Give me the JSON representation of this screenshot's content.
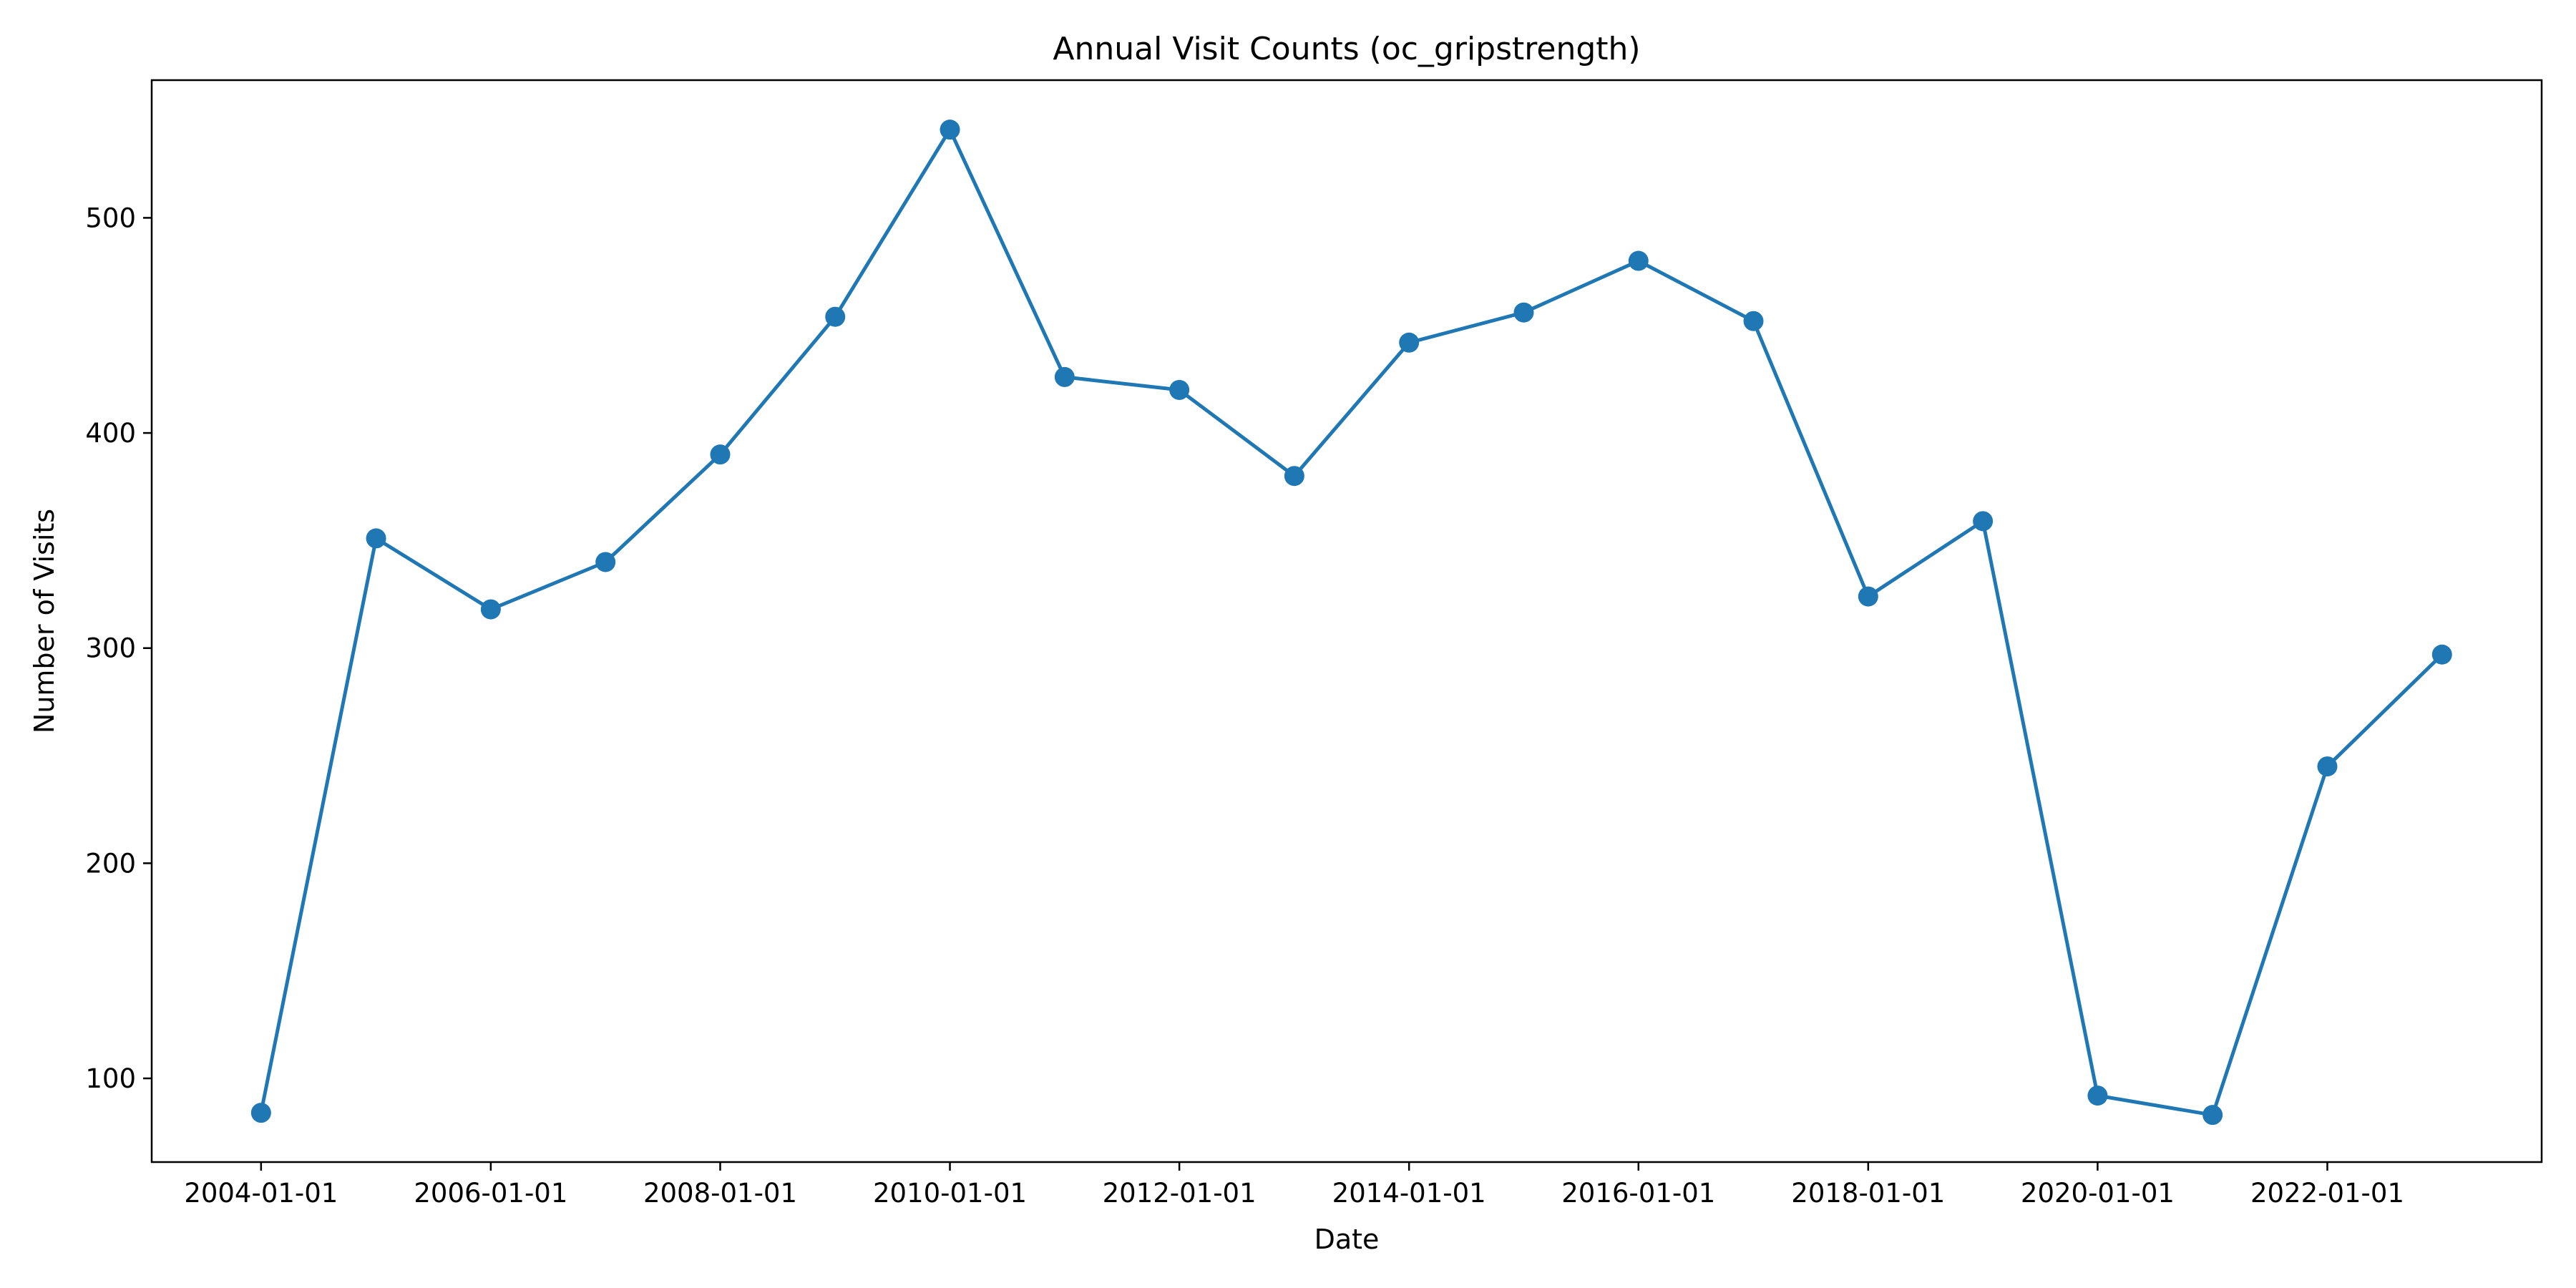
{
  "chart_data": {
    "type": "line",
    "title": "Annual Visit Counts (oc_gripstrength)",
    "xlabel": "Date",
    "ylabel": "Number of Visits",
    "x": [
      "2004-01-01",
      "2005-01-01",
      "2006-01-01",
      "2007-01-01",
      "2008-01-01",
      "2009-01-01",
      "2010-01-01",
      "2011-01-01",
      "2012-01-01",
      "2013-01-01",
      "2014-01-01",
      "2015-01-01",
      "2016-01-01",
      "2017-01-01",
      "2018-01-01",
      "2019-01-01",
      "2020-01-01",
      "2021-01-01",
      "2022-01-01",
      "2023-01-01"
    ],
    "series": [
      {
        "values": [
          84,
          351,
          318,
          340,
          390,
          454,
          541,
          426,
          420,
          380,
          442,
          456,
          480,
          452,
          324,
          359,
          92,
          83,
          245,
          297
        ]
      }
    ],
    "x_ticks": [
      "2004-01-01",
      "2006-01-01",
      "2008-01-01",
      "2010-01-01",
      "2012-01-01",
      "2014-01-01",
      "2016-01-01",
      "2018-01-01",
      "2020-01-01",
      "2022-01-01"
    ],
    "y_ticks": [
      100,
      200,
      300,
      400,
      500
    ],
    "xlim": [
      "2003-01-18",
      "2023-11-14"
    ],
    "ylim": [
      61.1,
      564.0
    ],
    "grid": false,
    "legend": "none",
    "colors": {
      "line": "#1f77b4",
      "axis": "#000000",
      "background": "#ffffff"
    }
  }
}
